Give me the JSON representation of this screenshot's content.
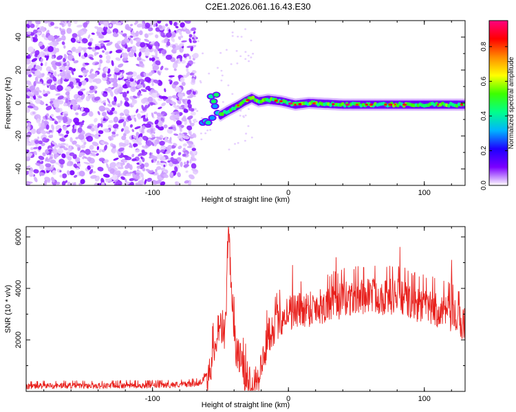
{
  "title": "C2E1.2026.061.16.43.E30",
  "chart_data": [
    {
      "type": "heatmap",
      "title": "C2E1.2026.061.16.43.E30",
      "xlabel": "Height of straight line (km)",
      "ylabel": "Frequency (Hz)",
      "xlim": [
        -193,
        130
      ],
      "ylim": [
        -50,
        50
      ],
      "xticks": [
        -100,
        0,
        100
      ],
      "yticks": [
        -40,
        -20,
        0,
        20,
        40
      ],
      "colorbar": {
        "label": "Normalized spectral amplitude",
        "range": [
          0,
          0.95
        ],
        "ticks": [
          0.0,
          0.2,
          0.4,
          0.6,
          0.8
        ],
        "colormap": [
          "#ffffff",
          "#7b00ff",
          "#1e00ff",
          "#00b4ff",
          "#00ff8c",
          "#3cff00",
          "#ffff00",
          "#ff8c00",
          "#ff0000",
          "#ff0080"
        ]
      },
      "regions": [
        {
          "name": "scattered noise",
          "x_range": [
            -193,
            -70
          ],
          "y_range": [
            -50,
            50
          ],
          "amplitude_range": [
            0.02,
            0.1
          ]
        },
        {
          "name": "onset blobs",
          "x_range": [
            -68,
            -52
          ],
          "y_range": [
            -16,
            6
          ],
          "amplitude_range": [
            0.3,
            0.55
          ]
        },
        {
          "name": "dominant band",
          "x_range": [
            -50,
            130
          ],
          "y_range": [
            -3,
            4
          ],
          "amplitude_range": [
            0.3,
            0.9
          ]
        }
      ],
      "ridge": [
        {
          "x": -55,
          "y": -10
        },
        {
          "x": -45,
          "y": -5
        },
        {
          "x": -38,
          "y": -2
        },
        {
          "x": -32,
          "y": 1
        },
        {
          "x": -27,
          "y": 3
        },
        {
          "x": -22,
          "y": 1
        },
        {
          "x": -15,
          "y": 2
        },
        {
          "x": -5,
          "y": 1
        },
        {
          "x": 5,
          "y": -1
        },
        {
          "x": 15,
          "y": 0
        },
        {
          "x": 40,
          "y": -1
        },
        {
          "x": 70,
          "y": -1
        },
        {
          "x": 100,
          "y": -1
        },
        {
          "x": 130,
          "y": -1
        }
      ]
    },
    {
      "type": "line",
      "xlabel": "Height of straight line (km)",
      "ylabel": "SNR (10 * v/v)",
      "xlim": [
        -193,
        130
      ],
      "ylim": [
        0,
        6400
      ],
      "xticks": [
        -100,
        0,
        100
      ],
      "yticks": [
        2000,
        4000,
        6000
      ],
      "series": [
        {
          "name": "SNR",
          "color": "#e8201c",
          "x": [
            -193,
            -180,
            -160,
            -140,
            -120,
            -100,
            -90,
            -80,
            -70,
            -65,
            -62,
            -58,
            -55,
            -52,
            -50,
            -48,
            -46,
            -45,
            -44,
            -42,
            -40,
            -38,
            -35,
            -32,
            -28,
            -24,
            -22,
            -20,
            -18,
            -15,
            -10,
            -5,
            0,
            10,
            20,
            30,
            40,
            50,
            60,
            70,
            80,
            90,
            100,
            110,
            120,
            125,
            130
          ],
          "values": [
            200,
            220,
            230,
            220,
            240,
            240,
            250,
            270,
            300,
            350,
            500,
            900,
            1600,
            2500,
            2800,
            1800,
            3200,
            4500,
            6300,
            4200,
            2500,
            1500,
            1200,
            700,
            400,
            500,
            700,
            900,
            1400,
            2200,
            2600,
            2900,
            3100,
            3200,
            3300,
            3400,
            3600,
            3700,
            3800,
            3700,
            3750,
            3500,
            3350,
            3200,
            3000,
            2800,
            2600
          ],
          "spikes": [
            {
              "x": -44,
              "y": 6300
            },
            {
              "x": 82,
              "y": 5600
            },
            {
              "x": 35,
              "y": 5200
            },
            {
              "x": 120,
              "y": 5100
            },
            {
              "x": 3,
              "y": 4900
            }
          ],
          "noise_amplitude": [
            {
              "x_range": [
                -193,
                -60
              ],
              "amp": 120
            },
            {
              "x_range": [
                -60,
                130
              ],
              "amp": 750
            }
          ]
        }
      ]
    }
  ]
}
